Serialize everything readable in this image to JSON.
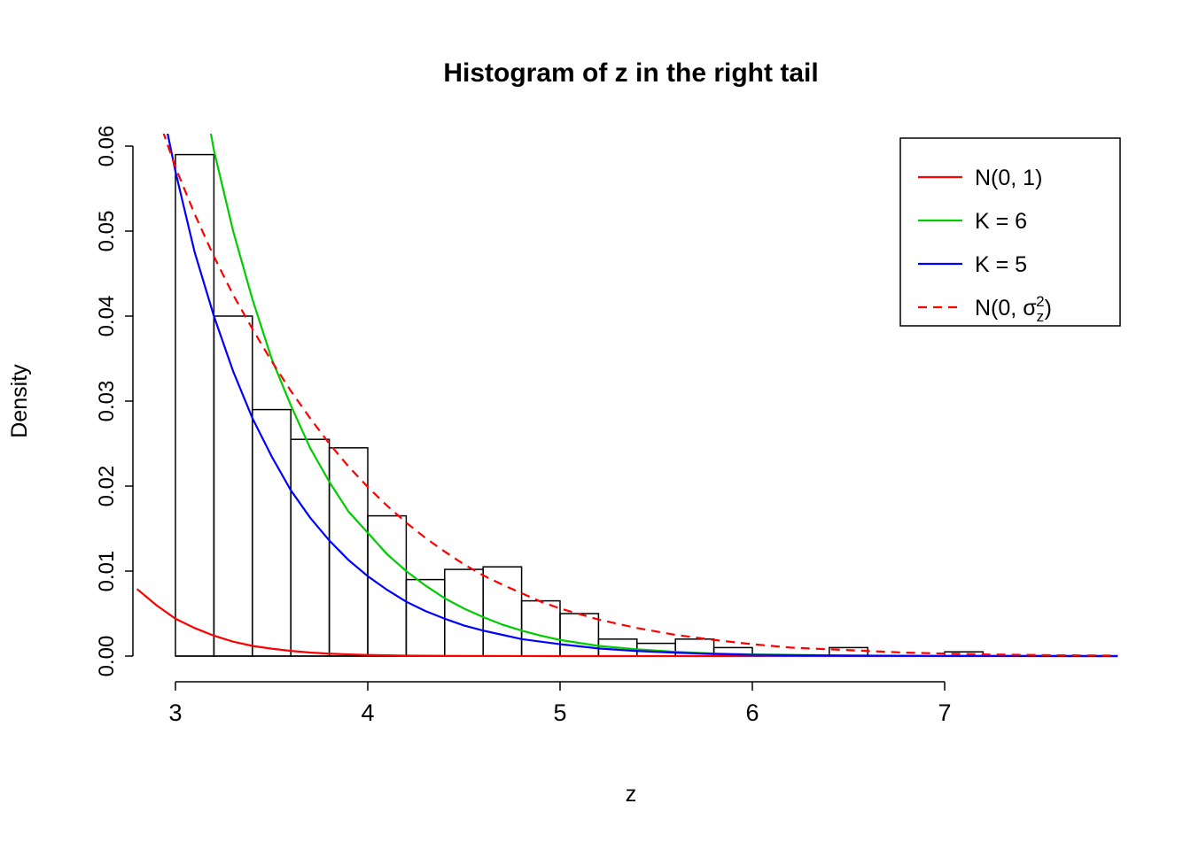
{
  "chart_data": {
    "type": "histogram",
    "title": "Histogram of z in the right tail",
    "xlabel": "z",
    "ylabel": "Density",
    "xlim": [
      2.8,
      7.9
    ],
    "ylim": [
      0,
      0.0615
    ],
    "grid": false,
    "x_ticks": [
      3,
      4,
      5,
      6,
      7
    ],
    "x_tick_labels": [
      "3",
      "4",
      "5",
      "6",
      "7"
    ],
    "y_ticks": [
      0,
      0.01,
      0.02,
      0.03,
      0.04,
      0.05,
      0.06
    ],
    "y_tick_labels": [
      "0.00",
      "0.01",
      "0.02",
      "0.03",
      "0.04",
      "0.05",
      "0.06"
    ],
    "histogram": {
      "bin_start": 3.0,
      "bin_width": 0.2,
      "bar_fill": "none",
      "bar_stroke": "#000000",
      "densities": [
        0.059,
        0.04,
        0.029,
        0.0255,
        0.0245,
        0.0165,
        0.009,
        0.0102,
        0.0105,
        0.0065,
        0.005,
        0.002,
        0.0015,
        0.002,
        0.001,
        0,
        0,
        0.001,
        0,
        0,
        0.0005
      ]
    },
    "series": [
      {
        "id": "n01",
        "name": "N(0, 1)",
        "color": "#FF0000",
        "dashed": false,
        "x": [
          2.8,
          2.9,
          3.0,
          3.1,
          3.2,
          3.3,
          3.4,
          3.5,
          3.6,
          3.7,
          3.8,
          3.9,
          4.0,
          4.1,
          4.2,
          4.3,
          4.4,
          4.5,
          4.6,
          4.8,
          5.0,
          5.5,
          6.0,
          7.9
        ],
        "y": [
          0.0079,
          0.006,
          0.0044,
          0.0033,
          0.0024,
          0.0017,
          0.0012,
          0.00087,
          0.00061,
          0.00042,
          0.00029,
          0.0002,
          0.00013,
          9e-05,
          6e-05,
          4e-05,
          2.5e-05,
          1.6e-05,
          1e-05,
          4e-06,
          1.5e-06,
          0,
          0,
          0
        ]
      },
      {
        "id": "k6",
        "name": "K = 6",
        "color": "#00CC00",
        "dashed": false,
        "x": [
          3.0,
          3.1,
          3.2,
          3.3,
          3.4,
          3.5,
          3.6,
          3.7,
          3.8,
          3.9,
          4.0,
          4.1,
          4.2,
          4.3,
          4.4,
          4.5,
          4.6,
          4.7,
          4.8,
          4.9,
          5.0,
          5.2,
          5.4,
          5.6,
          5.8,
          6.0,
          6.5,
          7.0,
          7.9
        ],
        "y": [
          0.088,
          0.072,
          0.0595,
          0.05,
          0.042,
          0.035,
          0.0295,
          0.0245,
          0.0205,
          0.017,
          0.0145,
          0.012,
          0.01,
          0.0083,
          0.0068,
          0.0056,
          0.0046,
          0.0037,
          0.003,
          0.0024,
          0.0019,
          0.0012,
          0.0008,
          0.0005,
          0.0003,
          0.0002,
          7e-05,
          2e-05,
          0
        ]
      },
      {
        "id": "k5",
        "name": "K = 5",
        "color": "#0000FF",
        "dashed": false,
        "x": [
          2.85,
          2.9,
          3.0,
          3.1,
          3.2,
          3.3,
          3.4,
          3.5,
          3.6,
          3.7,
          3.8,
          3.9,
          4.0,
          4.1,
          4.2,
          4.3,
          4.4,
          4.5,
          4.6,
          4.7,
          4.8,
          4.9,
          5.0,
          5.2,
          5.4,
          5.6,
          5.8,
          6.0,
          6.5,
          7.0,
          7.9
        ],
        "y": [
          0.075,
          0.068,
          0.057,
          0.0475,
          0.04,
          0.0335,
          0.028,
          0.0235,
          0.0195,
          0.0163,
          0.0136,
          0.0113,
          0.0094,
          0.0078,
          0.0064,
          0.0053,
          0.0044,
          0.0036,
          0.003,
          0.0025,
          0.002,
          0.0017,
          0.0014,
          0.0009,
          0.0006,
          0.0004,
          0.00025,
          0.00015,
          5e-05,
          2e-05,
          0
        ]
      },
      {
        "id": "n0sigma",
        "name": "N(0, σz²)",
        "color": "#FF0000",
        "dashed": true,
        "x": [
          2.8,
          2.9,
          3.0,
          3.1,
          3.2,
          3.3,
          3.4,
          3.5,
          3.6,
          3.7,
          3.8,
          3.9,
          4.0,
          4.1,
          4.2,
          4.3,
          4.4,
          4.5,
          4.6,
          4.7,
          4.8,
          4.9,
          5.0,
          5.2,
          5.4,
          5.6,
          5.8,
          6.0,
          6.2,
          6.4,
          6.6,
          6.8,
          7.0,
          7.2,
          7.4,
          7.6,
          7.9
        ],
        "y": [
          0.072,
          0.064,
          0.0575,
          0.052,
          0.047,
          0.0425,
          0.0385,
          0.0347,
          0.0312,
          0.028,
          0.025,
          0.0223,
          0.0199,
          0.0177,
          0.0157,
          0.0139,
          0.0123,
          0.0108,
          0.0095,
          0.0084,
          0.0074,
          0.0064,
          0.0056,
          0.0043,
          0.0033,
          0.0025,
          0.0019,
          0.0014,
          0.001,
          0.0008,
          0.0006,
          0.0004,
          0.0003,
          0.0002,
          0.00015,
          0.0001,
          6e-05
        ]
      }
    ],
    "legend": {
      "position": "top-right",
      "entries": [
        {
          "label": "N(0, 1)",
          "color": "#FF0000",
          "dashed": false
        },
        {
          "label": "K = 6",
          "color": "#00CC00",
          "dashed": false
        },
        {
          "label": "K = 5",
          "color": "#0000FF",
          "dashed": false
        },
        {
          "label": "N(0, σz²)",
          "color": "#FF0000",
          "dashed": true,
          "label_parts": {
            "prefix": "N(0, ",
            "symbol": "σ",
            "sub": "z",
            "sup": "2",
            "suffix": ")"
          }
        }
      ]
    }
  }
}
